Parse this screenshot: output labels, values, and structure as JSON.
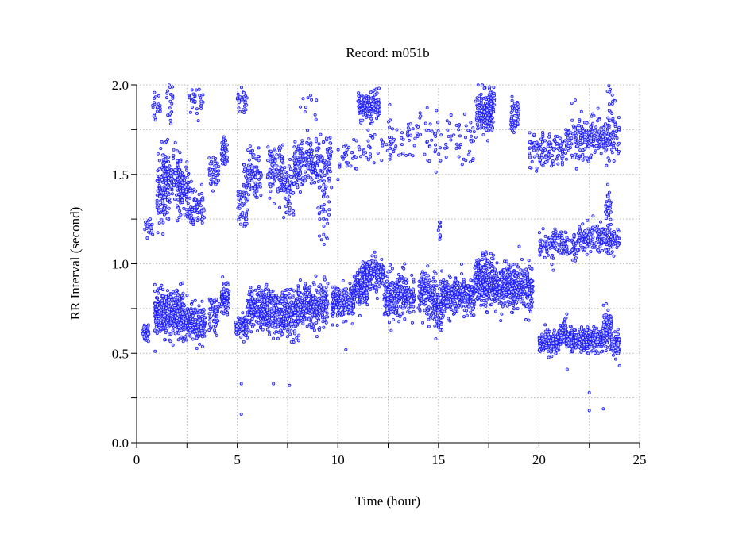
{
  "chart_data": {
    "type": "scatter",
    "title": "Record:  m051b",
    "xlabel": "Time (hour)",
    "ylabel": "RR Interval (second)",
    "xlim": [
      0,
      25
    ],
    "ylim": [
      0,
      2.0
    ],
    "xticks": [
      "0",
      "5",
      "10",
      "15",
      "20",
      "25"
    ],
    "xtick_values": [
      0,
      5,
      10,
      15,
      20,
      25
    ],
    "xminor": [
      2.5,
      7.5,
      12.5,
      17.5,
      22.5
    ],
    "yticks": [
      "0.0",
      "0.5",
      "1.0",
      "1.5",
      "2.0"
    ],
    "ytick_values": [
      0,
      0.5,
      1.0,
      1.5,
      2.0
    ],
    "yminor": [
      0.25,
      0.75,
      1.25,
      1.75
    ],
    "grid": true,
    "marker_color": "#1a1aff",
    "clusters_columns": [
      "x_start_hour",
      "x_end_hour",
      "y_mean_sec",
      "y_sd_sec",
      "count"
    ],
    "clusters": [
      [
        0.3,
        0.6,
        0.62,
        0.03,
        40
      ],
      [
        0.9,
        2.4,
        0.72,
        0.06,
        400
      ],
      [
        2.4,
        3.4,
        0.67,
        0.05,
        200
      ],
      [
        3.6,
        4.1,
        0.72,
        0.05,
        60
      ],
      [
        4.2,
        4.6,
        0.8,
        0.04,
        80
      ],
      [
        4.9,
        5.5,
        0.65,
        0.03,
        100
      ],
      [
        5.5,
        7.0,
        0.74,
        0.06,
        300
      ],
      [
        7.0,
        8.0,
        0.72,
        0.06,
        200
      ],
      [
        8.0,
        9.5,
        0.77,
        0.06,
        300
      ],
      [
        9.7,
        10.8,
        0.78,
        0.05,
        200
      ],
      [
        10.8,
        11.5,
        0.86,
        0.05,
        150
      ],
      [
        11.2,
        12.3,
        0.94,
        0.04,
        200
      ],
      [
        12.3,
        13.8,
        0.83,
        0.06,
        300
      ],
      [
        14.0,
        14.8,
        0.83,
        0.06,
        150
      ],
      [
        14.8,
        15.2,
        0.75,
        0.08,
        80
      ],
      [
        15.2,
        16.8,
        0.82,
        0.05,
        300
      ],
      [
        16.8,
        17.8,
        0.9,
        0.07,
        250
      ],
      [
        17.8,
        19.7,
        0.87,
        0.06,
        400
      ],
      [
        20.0,
        21.0,
        0.56,
        0.03,
        200
      ],
      [
        21.0,
        21.6,
        0.6,
        0.04,
        120
      ],
      [
        21.6,
        23.2,
        0.57,
        0.03,
        300
      ],
      [
        23.2,
        23.6,
        0.65,
        0.05,
        80
      ],
      [
        23.6,
        24.0,
        0.55,
        0.03,
        60
      ],
      [
        0.4,
        0.8,
        1.2,
        0.04,
        20
      ],
      [
        1.0,
        1.6,
        1.42,
        0.1,
        120
      ],
      [
        1.3,
        2.2,
        1.48,
        0.08,
        120
      ],
      [
        2.0,
        2.6,
        1.42,
        0.07,
        100
      ],
      [
        2.6,
        3.4,
        1.32,
        0.05,
        80
      ],
      [
        3.6,
        4.1,
        1.5,
        0.06,
        40
      ],
      [
        4.2,
        4.5,
        1.62,
        0.04,
        50
      ],
      [
        5.0,
        5.5,
        1.3,
        0.06,
        40
      ],
      [
        5.3,
        6.2,
        1.5,
        0.07,
        100
      ],
      [
        6.5,
        7.3,
        1.52,
        0.07,
        100
      ],
      [
        7.3,
        7.8,
        1.42,
        0.08,
        60
      ],
      [
        7.8,
        9.7,
        1.55,
        0.07,
        250
      ],
      [
        9.0,
        9.6,
        1.3,
        0.08,
        30
      ],
      [
        10.0,
        11.0,
        1.6,
        0.05,
        30
      ],
      [
        11.0,
        12.1,
        1.88,
        0.04,
        150
      ],
      [
        11.0,
        13.0,
        1.68,
        0.06,
        40
      ],
      [
        12.5,
        17.0,
        1.7,
        0.08,
        120
      ],
      [
        15.0,
        15.1,
        1.2,
        0.05,
        10
      ],
      [
        16.9,
        17.7,
        1.85,
        0.06,
        150
      ],
      [
        17.5,
        17.8,
        1.9,
        0.05,
        40
      ],
      [
        18.6,
        19.0,
        1.82,
        0.05,
        50
      ],
      [
        19.5,
        21.2,
        1.63,
        0.05,
        120
      ],
      [
        21.3,
        24.0,
        1.7,
        0.06,
        250
      ],
      [
        20.0,
        22.0,
        1.1,
        0.04,
        150
      ],
      [
        22.0,
        24.0,
        1.14,
        0.04,
        200
      ],
      [
        23.3,
        23.6,
        1.32,
        0.05,
        30
      ],
      [
        0.8,
        1.2,
        1.88,
        0.05,
        20
      ],
      [
        1.5,
        1.8,
        1.9,
        0.06,
        20
      ],
      [
        2.6,
        3.3,
        1.92,
        0.05,
        30
      ],
      [
        5.0,
        5.5,
        1.92,
        0.04,
        30
      ],
      [
        8.0,
        9.0,
        1.9,
        0.06,
        10
      ],
      [
        23.4,
        23.8,
        1.9,
        0.07,
        20
      ]
    ],
    "outliers": [
      [
        5.2,
        0.33
      ],
      [
        5.2,
        0.16
      ],
      [
        6.8,
        0.33
      ],
      [
        7.6,
        0.32
      ],
      [
        22.5,
        0.28
      ],
      [
        22.5,
        0.18
      ],
      [
        23.2,
        0.19
      ],
      [
        10.4,
        0.52
      ],
      [
        21.4,
        0.41
      ],
      [
        24.0,
        0.43
      ]
    ]
  }
}
